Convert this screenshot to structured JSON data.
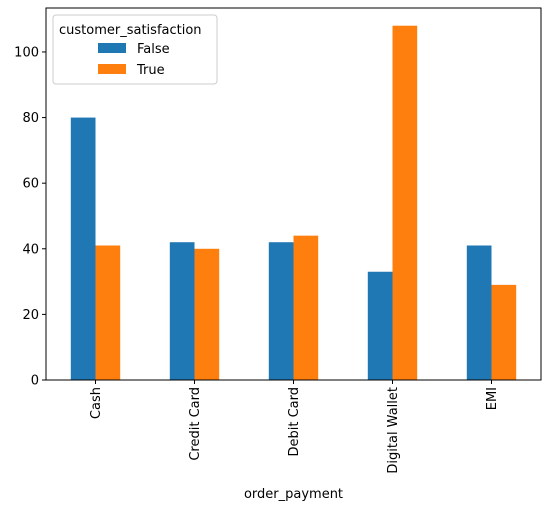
{
  "chart_data": {
    "type": "bar",
    "title": "",
    "xlabel": "order_payment",
    "ylabel": "",
    "categories": [
      "Cash",
      "Credit Card",
      "Debit Card",
      "Digital Wallet",
      "EMI"
    ],
    "series": [
      {
        "name": "False",
        "color": "#1f77b4",
        "values": [
          80,
          42,
          42,
          33,
          41
        ]
      },
      {
        "name": "True",
        "color": "#ff7f0e",
        "values": [
          41,
          40,
          44,
          108,
          29
        ]
      }
    ],
    "ylim": [
      0,
      113.4
    ],
    "yticks": [
      0,
      20,
      40,
      60,
      80,
      100
    ],
    "grid": false,
    "legend": {
      "title": "customer_satisfaction",
      "placement": "top-left"
    }
  }
}
